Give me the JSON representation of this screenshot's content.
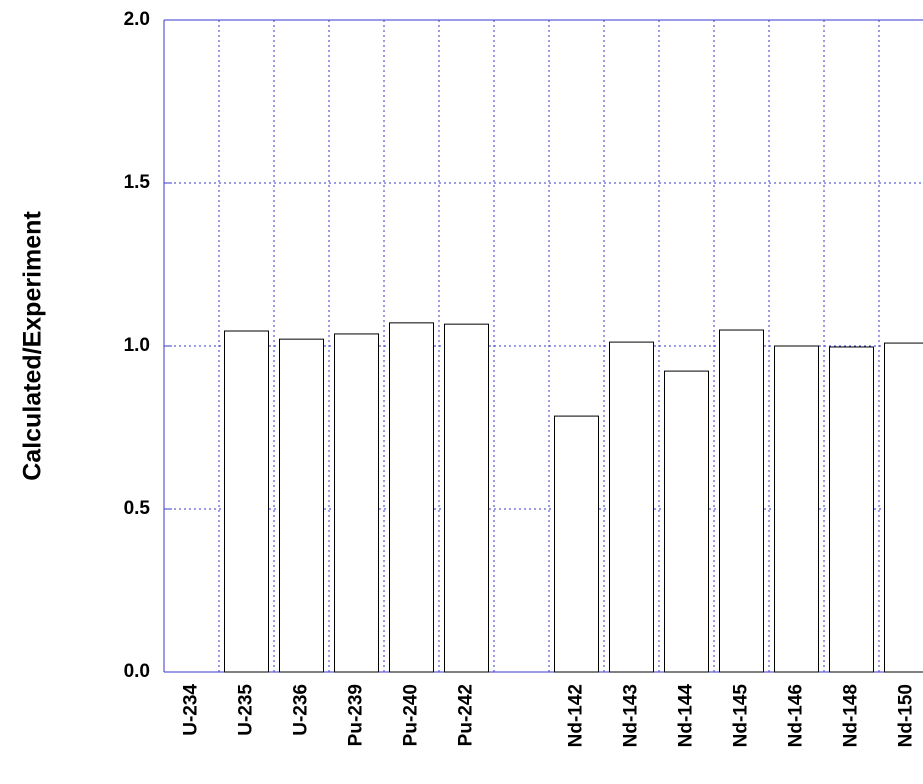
{
  "chart_data": {
    "type": "bar",
    "y_label": "Calculated/Experiment",
    "categories": [
      "U-234",
      "U-235",
      "U-236",
      "Pu-239",
      "Pu-240",
      "Pu-242",
      null,
      "Nd-142",
      "Nd-143",
      "Nd-144",
      "Nd-145",
      "Nd-146",
      "Nd-148",
      "Nd-150"
    ],
    "values": [
      null,
      1.046,
      1.021,
      1.037,
      1.071,
      1.067,
      null,
      0.785,
      1.012,
      0.923,
      1.049,
      1.0,
      0.997,
      1.009
    ],
    "color": "#ffffff",
    "ylim": [
      0,
      2
    ],
    "yticks": [
      {
        "value": 0,
        "label": "0.0"
      },
      {
        "value": 0.5,
        "label": "0.5"
      },
      {
        "value": 1,
        "label": "1.0"
      },
      {
        "value": 1.5,
        "label": "1.5"
      },
      {
        "value": 2,
        "label": "2.0"
      }
    ],
    "grid": true
  }
}
